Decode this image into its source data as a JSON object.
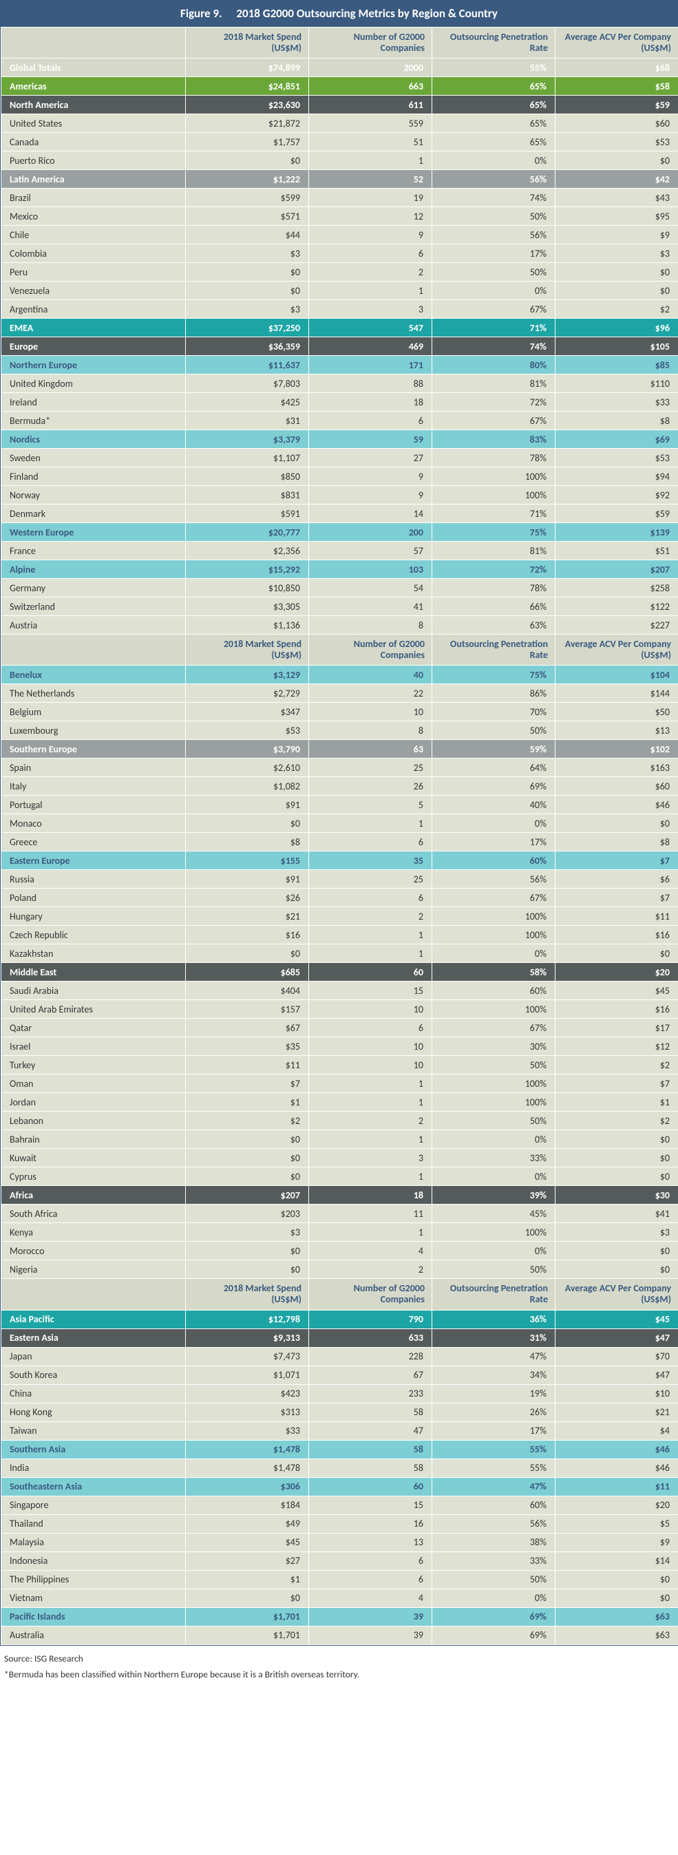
{
  "title": "Figure 9.  2018 G2000 Outsourcing Metrics by Region & Country",
  "columns": [
    "",
    "2018 Market Spend (US$M)",
    "Number of G2000 Companies",
    "Outsourcing Penetration Rate",
    "Average ACV Per Company (US$M)"
  ],
  "columns_alt": [
    "",
    "2018 Market Spend (US$M)",
    "Number of G2000 Companies",
    "Outsourcing Penetration Rate",
    "Average ACV Per Company (US$M)"
  ],
  "sections": [
    {
      "header": true,
      "rows": [
        {
          "style": "global",
          "c": [
            "Global Totals",
            "$74,899",
            "2000",
            "55%",
            "$68"
          ]
        },
        {
          "style": "major1",
          "c": [
            "Americas",
            "$24,851",
            "663",
            "65%",
            "$58"
          ]
        },
        {
          "style": "dark",
          "c": [
            "North America",
            "$23,630",
            "611",
            "65%",
            "$59"
          ]
        },
        {
          "style": "data",
          "c": [
            "United States",
            "$21,872",
            "559",
            "65%",
            "$60"
          ]
        },
        {
          "style": "data",
          "c": [
            "Canada",
            "$1,757",
            "51",
            "65%",
            "$53"
          ]
        },
        {
          "style": "data",
          "c": [
            "Puerto Rico",
            "$0",
            "1",
            "0%",
            "$0"
          ]
        },
        {
          "style": "gray",
          "c": [
            "Latin America",
            "$1,222",
            "52",
            "56%",
            "$42"
          ]
        },
        {
          "style": "data",
          "c": [
            "Brazil",
            "$599",
            "19",
            "74%",
            "$43"
          ]
        },
        {
          "style": "data",
          "c": [
            "Mexico",
            "$571",
            "12",
            "50%",
            "$95"
          ]
        },
        {
          "style": "data",
          "c": [
            "Chile",
            "$44",
            "9",
            "56%",
            "$9"
          ]
        },
        {
          "style": "data",
          "c": [
            "Colombia",
            "$3",
            "6",
            "17%",
            "$3"
          ]
        },
        {
          "style": "data",
          "c": [
            "Peru",
            "$0",
            "2",
            "50%",
            "$0"
          ]
        },
        {
          "style": "data",
          "c": [
            "Venezuela",
            "$0",
            "1",
            "0%",
            "$0"
          ]
        },
        {
          "style": "data",
          "c": [
            "Argentina",
            "$3",
            "3",
            "67%",
            "$2"
          ]
        },
        {
          "style": "major2",
          "c": [
            "EMEA",
            "$37,250",
            "547",
            "71%",
            "$96"
          ]
        },
        {
          "style": "dark",
          "c": [
            "Europe",
            "$36,359",
            "469",
            "74%",
            "$105"
          ]
        },
        {
          "style": "cyan",
          "c": [
            "Northern Europe",
            "$11,637",
            "171",
            "80%",
            "$85"
          ]
        },
        {
          "style": "data",
          "c": [
            "United Kingdom",
            "$7,803",
            "88",
            "81%",
            "$110"
          ]
        },
        {
          "style": "data",
          "c": [
            "Ireland",
            "$425",
            "18",
            "72%",
            "$33"
          ]
        },
        {
          "style": "data",
          "c": [
            "Bermuda*",
            "$31",
            "6",
            "67%",
            "$8"
          ]
        },
        {
          "style": "cyan",
          "c": [
            "Nordics",
            "$3,379",
            "59",
            "83%",
            "$69"
          ]
        },
        {
          "style": "data",
          "c": [
            "Sweden",
            "$1,107",
            "27",
            "78%",
            "$53"
          ]
        },
        {
          "style": "data",
          "c": [
            "Finland",
            "$850",
            "9",
            "100%",
            "$94"
          ]
        },
        {
          "style": "data",
          "c": [
            "Norway",
            "$831",
            "9",
            "100%",
            "$92"
          ]
        },
        {
          "style": "data",
          "c": [
            "Denmark",
            "$591",
            "14",
            "71%",
            "$59"
          ]
        },
        {
          "style": "cyan",
          "c": [
            "Western Europe",
            "$20,777",
            "200",
            "75%",
            "$139"
          ]
        },
        {
          "style": "data",
          "c": [
            "France",
            "$2,356",
            "57",
            "81%",
            "$51"
          ]
        },
        {
          "style": "cyan",
          "c": [
            "Alpine",
            "$15,292",
            "103",
            "72%",
            "$207"
          ]
        },
        {
          "style": "data",
          "c": [
            "Germany",
            "$10,850",
            "54",
            "78%",
            "$258"
          ]
        },
        {
          "style": "data",
          "c": [
            "Switzerland",
            "$3,305",
            "41",
            "66%",
            "$122"
          ]
        },
        {
          "style": "data",
          "c": [
            "Austria",
            "$1,136",
            "8",
            "63%",
            "$227"
          ]
        }
      ]
    },
    {
      "header": true,
      "rows": [
        {
          "style": "cyan",
          "c": [
            "Benelux",
            "$3,129",
            "40",
            "75%",
            "$104"
          ]
        },
        {
          "style": "data",
          "c": [
            "The Netherlands",
            "$2,729",
            "22",
            "86%",
            "$144"
          ]
        },
        {
          "style": "data",
          "c": [
            "Belgium",
            "$347",
            "10",
            "70%",
            "$50"
          ]
        },
        {
          "style": "data",
          "c": [
            "Luxembourg",
            "$53",
            "8",
            "50%",
            "$13"
          ]
        },
        {
          "style": "gray",
          "c": [
            "Southern Europe",
            "$3,790",
            "63",
            "59%",
            "$102"
          ]
        },
        {
          "style": "data",
          "c": [
            "Spain",
            "$2,610",
            "25",
            "64%",
            "$163"
          ]
        },
        {
          "style": "data",
          "c": [
            "Italy",
            "$1,082",
            "26",
            "69%",
            "$60"
          ]
        },
        {
          "style": "data",
          "c": [
            "Portugal",
            "$91",
            "5",
            "40%",
            "$46"
          ]
        },
        {
          "style": "data",
          "c": [
            "Monaco",
            "$0",
            "1",
            "0%",
            "$0"
          ]
        },
        {
          "style": "data",
          "c": [
            "Greece",
            "$8",
            "6",
            "17%",
            "$8"
          ]
        },
        {
          "style": "cyan",
          "c": [
            "Eastern Europe",
            "$155",
            "35",
            "60%",
            "$7"
          ]
        },
        {
          "style": "data",
          "c": [
            "Russia",
            "$91",
            "25",
            "56%",
            "$6"
          ]
        },
        {
          "style": "data",
          "c": [
            "Poland",
            "$26",
            "6",
            "67%",
            "$7"
          ]
        },
        {
          "style": "data",
          "c": [
            "Hungary",
            "$21",
            "2",
            "100%",
            "$11"
          ]
        },
        {
          "style": "data",
          "c": [
            "Czech Republic",
            "$16",
            "1",
            "100%",
            "$16"
          ]
        },
        {
          "style": "data",
          "c": [
            "Kazakhstan",
            "$0",
            "1",
            "0%",
            "$0"
          ]
        },
        {
          "style": "dark",
          "c": [
            "Middle East",
            "$685",
            "60",
            "58%",
            "$20"
          ]
        },
        {
          "style": "data",
          "c": [
            "Saudi Arabia",
            "$404",
            "15",
            "60%",
            "$45"
          ]
        },
        {
          "style": "data",
          "c": [
            "United Arab Emirates",
            "$157",
            "10",
            "100%",
            "$16"
          ]
        },
        {
          "style": "data",
          "c": [
            "Qatar",
            "$67",
            "6",
            "67%",
            "$17"
          ]
        },
        {
          "style": "data",
          "c": [
            "Israel",
            "$35",
            "10",
            "30%",
            "$12"
          ]
        },
        {
          "style": "data",
          "c": [
            "Turkey",
            "$11",
            "10",
            "50%",
            "$2"
          ]
        },
        {
          "style": "data",
          "c": [
            "Oman",
            "$7",
            "1",
            "100%",
            "$7"
          ]
        },
        {
          "style": "data",
          "c": [
            "Jordan",
            "$1",
            "1",
            "100%",
            "$1"
          ]
        },
        {
          "style": "data",
          "c": [
            "Lebanon",
            "$2",
            "2",
            "50%",
            "$2"
          ]
        },
        {
          "style": "data",
          "c": [
            "Bahrain",
            "$0",
            "1",
            "0%",
            "$0"
          ]
        },
        {
          "style": "data",
          "c": [
            "Kuwait",
            "$0",
            "3",
            "33%",
            "$0"
          ]
        },
        {
          "style": "data",
          "c": [
            "Cyprus",
            "$0",
            "1",
            "0%",
            "$0"
          ]
        },
        {
          "style": "dark",
          "c": [
            "Africa",
            "$207",
            "18",
            "39%",
            "$30"
          ]
        },
        {
          "style": "data",
          "c": [
            "South Africa",
            "$203",
            "11",
            "45%",
            "$41"
          ]
        },
        {
          "style": "data",
          "c": [
            "Kenya",
            "$3",
            "1",
            "100%",
            "$3"
          ]
        },
        {
          "style": "data",
          "c": [
            "Morocco",
            "$0",
            "4",
            "0%",
            "$0"
          ]
        },
        {
          "style": "data",
          "c": [
            "Nigeria",
            "$0",
            "2",
            "50%",
            "$0"
          ]
        }
      ]
    },
    {
      "header": true,
      "rows": [
        {
          "style": "major2",
          "c": [
            "Asia Pacific",
            "$12,798",
            "790",
            "36%",
            "$45"
          ]
        },
        {
          "style": "dark",
          "c": [
            "Eastern Asia",
            "$9,313",
            "633",
            "31%",
            "$47"
          ]
        },
        {
          "style": "data",
          "c": [
            "Japan",
            "$7,473",
            "228",
            "47%",
            "$70"
          ]
        },
        {
          "style": "data",
          "c": [
            "South Korea",
            "$1,071",
            "67",
            "34%",
            "$47"
          ]
        },
        {
          "style": "data",
          "c": [
            "China",
            "$423",
            "233",
            "19%",
            "$10"
          ]
        },
        {
          "style": "data",
          "c": [
            "Hong Kong",
            "$313",
            "58",
            "26%",
            "$21"
          ]
        },
        {
          "style": "data",
          "c": [
            "Taiwan",
            "$33",
            "47",
            "17%",
            "$4"
          ]
        },
        {
          "style": "cyan",
          "c": [
            "Southern Asia",
            "$1,478",
            "58",
            "55%",
            "$46"
          ]
        },
        {
          "style": "data",
          "c": [
            "India",
            "$1,478",
            "58",
            "55%",
            "$46"
          ]
        },
        {
          "style": "cyan",
          "c": [
            "Southeastern Asia",
            "$306",
            "60",
            "47%",
            "$11"
          ]
        },
        {
          "style": "data",
          "c": [
            "Singapore",
            "$184",
            "15",
            "60%",
            "$20"
          ]
        },
        {
          "style": "data",
          "c": [
            "Thailand",
            "$49",
            "16",
            "56%",
            "$5"
          ]
        },
        {
          "style": "data",
          "c": [
            "Malaysia",
            "$45",
            "13",
            "38%",
            "$9"
          ]
        },
        {
          "style": "data",
          "c": [
            "Indonesia",
            "$27",
            "6",
            "33%",
            "$14"
          ]
        },
        {
          "style": "data",
          "c": [
            "The Philippines",
            "$1",
            "6",
            "50%",
            "$0"
          ]
        },
        {
          "style": "data",
          "c": [
            "Vietnam",
            "$0",
            "4",
            "0%",
            "$0"
          ]
        },
        {
          "style": "cyan",
          "c": [
            "Pacific Islands",
            "$1,701",
            "39",
            "69%",
            "$63"
          ]
        },
        {
          "style": "data",
          "c": [
            "Australia",
            "$1,701",
            "39",
            "69%",
            "$63"
          ]
        }
      ]
    }
  ],
  "footer": [
    "Source: ISG Research",
    "*Bermuda has been classified within Northern Europe because it is a British overseas territory."
  ]
}
